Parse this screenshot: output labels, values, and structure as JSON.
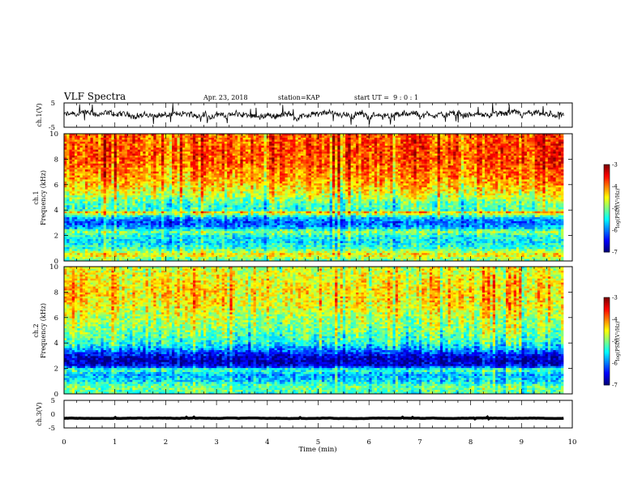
{
  "header": {
    "title": "VLF Spectra",
    "date": "Apr. 23, 2018",
    "station": "station=KAP",
    "start_ut": "start UT =  9 : 0 : 1"
  },
  "chart_data": [
    {
      "type": "line",
      "name": "ch1-waveform",
      "ylabel": "ch.1(V)",
      "ylim": [
        -5,
        5
      ],
      "yticks": [
        "5",
        "-5"
      ],
      "xlim": [
        0,
        10
      ],
      "data_extent_min": 9.83,
      "approx_mean": 0,
      "approx_amplitude": 1.5
    },
    {
      "type": "heatmap",
      "name": "ch1-spectrogram",
      "ylabel": "ch.1\nFrequency (kHz)",
      "ylim": [
        0,
        10
      ],
      "yticks": [
        "0",
        "2",
        "4",
        "6",
        "8",
        "10"
      ],
      "xlim": [
        0,
        9.83
      ],
      "color_scale_label": "log(PSD)(V²/Hz)",
      "color_range": [
        -7,
        -3
      ],
      "color_ticks": [
        "-3",
        "-4",
        "-5",
        "-6",
        "-7"
      ],
      "frequency_profile_kHz": [
        [
          0.0,
          -5.2
        ],
        [
          0.5,
          -4.4
        ],
        [
          1.0,
          -5.3
        ],
        [
          1.5,
          -5.6
        ],
        [
          2.0,
          -5.4
        ],
        [
          2.3,
          -4.9
        ],
        [
          2.6,
          -5.8
        ],
        [
          3.0,
          -6.2
        ],
        [
          3.3,
          -5.9
        ],
        [
          3.6,
          -5.2
        ],
        [
          3.8,
          -4.2
        ],
        [
          4.0,
          -5.3
        ],
        [
          4.5,
          -5.2
        ],
        [
          5.0,
          -4.8
        ],
        [
          5.5,
          -4.5
        ],
        [
          6.0,
          -4.3
        ],
        [
          7.0,
          -4.0
        ],
        [
          8.0,
          -3.8
        ],
        [
          9.0,
          -3.8
        ],
        [
          10.0,
          -3.9
        ]
      ]
    },
    {
      "type": "heatmap",
      "name": "ch2-spectrogram",
      "ylabel": "ch.2\nFrequency (kHz)",
      "ylim": [
        0,
        10
      ],
      "yticks": [
        "0",
        "2",
        "4",
        "6",
        "8",
        "10"
      ],
      "xlim": [
        0,
        9.83
      ],
      "color_scale_label": "log(PSD)(V²/Hz)",
      "color_range": [
        -7,
        -3
      ],
      "color_ticks": [
        "-3",
        "-4",
        "-5",
        "-6",
        "-7"
      ],
      "frequency_profile_kHz": [
        [
          0.0,
          -5.3
        ],
        [
          0.5,
          -5.0
        ],
        [
          1.0,
          -5.6
        ],
        [
          1.5,
          -5.8
        ],
        [
          1.9,
          -5.2
        ],
        [
          2.2,
          -6.6
        ],
        [
          2.6,
          -6.8
        ],
        [
          3.0,
          -6.6
        ],
        [
          3.5,
          -5.9
        ],
        [
          4.0,
          -5.4
        ],
        [
          5.0,
          -5.0
        ],
        [
          6.0,
          -4.8
        ],
        [
          7.0,
          -4.5
        ],
        [
          8.0,
          -4.4
        ],
        [
          9.0,
          -4.5
        ],
        [
          10.0,
          -4.7
        ]
      ]
    },
    {
      "type": "line",
      "name": "ch3-waveform",
      "ylabel": "ch.3(V)",
      "ylim": [
        -5,
        5
      ],
      "yticks": [
        "5",
        "0",
        "-5"
      ],
      "xlim": [
        0,
        10
      ],
      "data_extent_min": 9.83,
      "approx_mean": -1.5,
      "approx_amplitude": 0.15
    }
  ],
  "x_axis": {
    "label": "Time (min)",
    "ticks": [
      "0",
      "1",
      "2",
      "3",
      "4",
      "5",
      "6",
      "7",
      "8",
      "9",
      "10"
    ],
    "range": [
      0,
      10
    ]
  },
  "colors": {
    "low": "#00008b",
    "mid": "#00ff7f",
    "high": "#ff2000",
    "axis": "#000000"
  }
}
